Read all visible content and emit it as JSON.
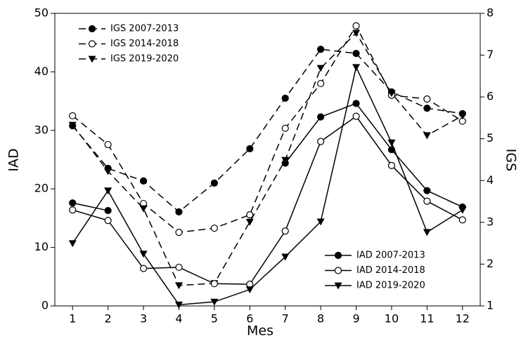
{
  "chart_data": {
    "type": "line",
    "x": [
      1,
      2,
      3,
      4,
      5,
      6,
      7,
      8,
      9,
      10,
      11,
      12
    ],
    "xlim": [
      0.5,
      12.5
    ],
    "xticks": [
      1,
      2,
      3,
      4,
      5,
      6,
      7,
      8,
      9,
      10,
      11,
      12
    ],
    "xlabel": "Mes",
    "ylabel": "IAD",
    "y2label": "IGS",
    "ylim": [
      0,
      50
    ],
    "yticks": [
      0,
      10,
      20,
      30,
      40,
      50
    ],
    "y2lim": [
      1,
      8
    ],
    "y2ticks": [
      1,
      2,
      3,
      4,
      5,
      6,
      7,
      8
    ],
    "legend": "lower right",
    "legend2": "upper left",
    "series": [
      {
        "name": "IGS 2007-2013",
        "color": "#000000",
        "axis": "y2",
        "dash": true,
        "marker": "circle",
        "values": [
          5.31,
          4.29,
          3.99,
          3.25,
          3.94,
          4.76,
          5.97,
          7.14,
          7.04,
          6.12,
          5.73,
          5.6
        ]
      },
      {
        "name": "IGS 2014-2018",
        "color": "#000000",
        "axis": "y2",
        "dash": true,
        "marker": "circle-open",
        "values": [
          5.55,
          4.86,
          3.45,
          2.76,
          2.86,
          3.18,
          5.25,
          6.32,
          7.7,
          6.04,
          5.95,
          5.42
        ]
      },
      {
        "name": "IGS 2019-2020",
        "color": "#000000",
        "axis": "y2",
        "dash": true,
        "marker": "triangle",
        "values": [
          5.33,
          4.22,
          3.33,
          1.49,
          1.54,
          3.01,
          4.49,
          6.69,
          7.53,
          6.09,
          5.08,
          5.55
        ]
      },
      {
        "name": "IAD 2007-2013",
        "color": "#000000",
        "axis": "y",
        "dash": false,
        "marker": "circle",
        "values": [
          17.6,
          16.3,
          null,
          null,
          null,
          null,
          24.4,
          32.3,
          34.6,
          26.7,
          19.7,
          16.9
        ]
      },
      {
        "name": "IAD 2014-2018",
        "color": "#000000",
        "axis": "y",
        "dash": false,
        "marker": "circle-open",
        "values": [
          16.4,
          14.6,
          6.4,
          6.6,
          3.8,
          3.7,
          12.8,
          28.1,
          32.4,
          24.0,
          17.9,
          14.7
        ]
      },
      {
        "name": "IAD 2019-2020",
        "color": "#000000",
        "axis": "y",
        "dash": false,
        "marker": "triangle",
        "values": [
          10.7,
          19.7,
          8.9,
          0.2,
          0.7,
          2.8,
          8.4,
          14.4,
          40.8,
          27.9,
          12.6,
          16.4
        ]
      }
    ]
  }
}
